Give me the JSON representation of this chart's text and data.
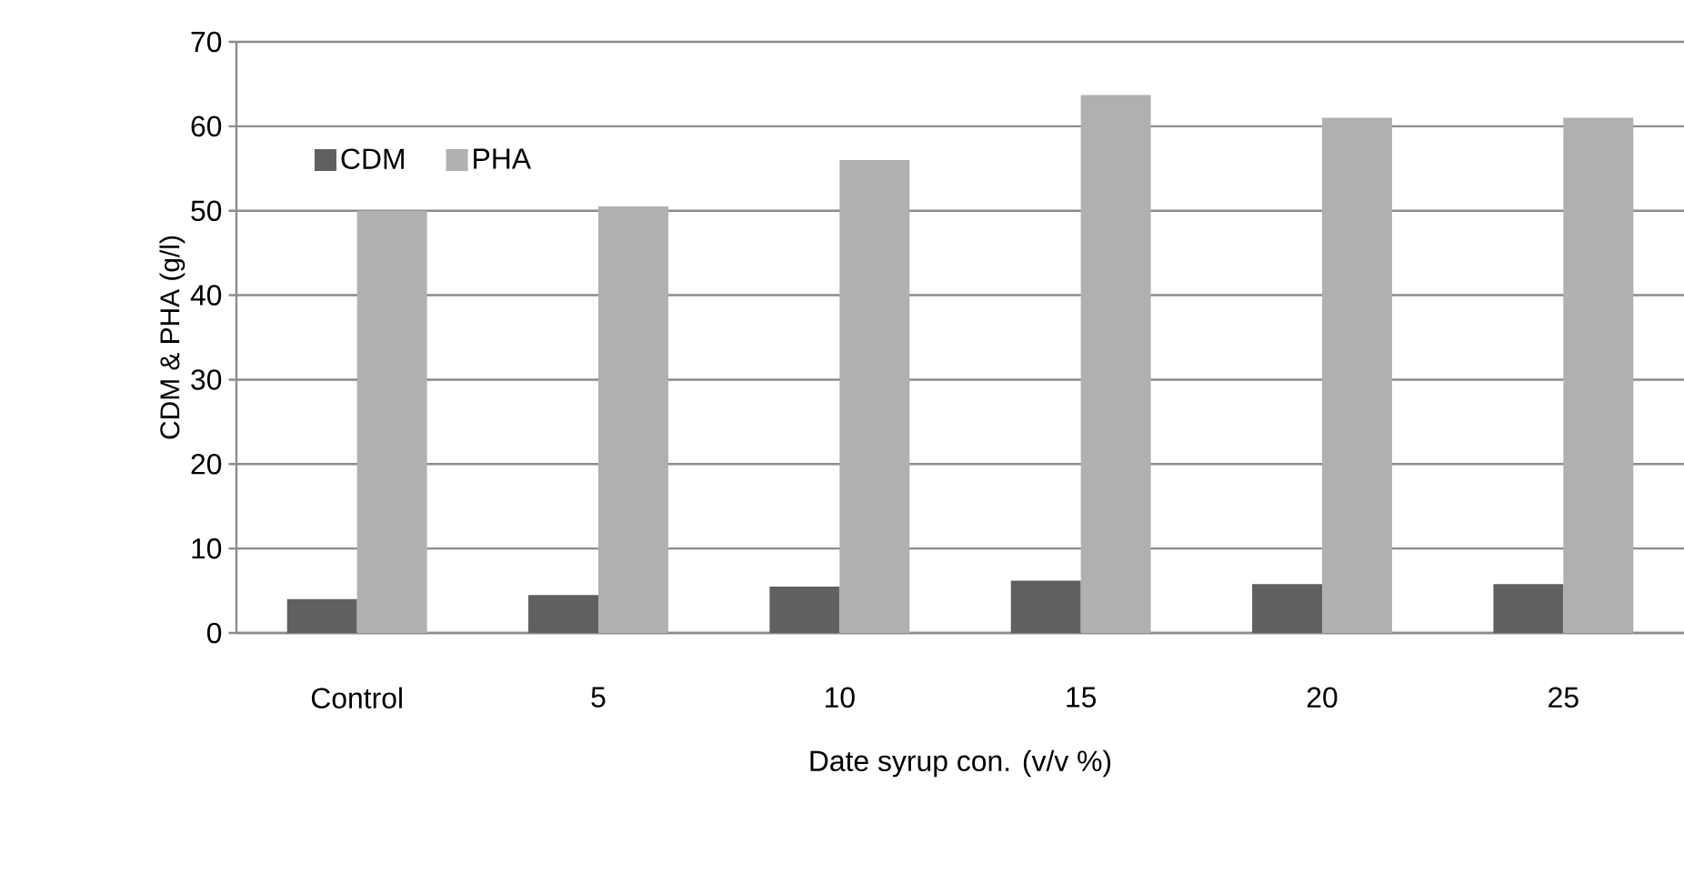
{
  "chart_data": {
    "type": "bar",
    "xlabel": "Date syrup con. (v/v %)",
    "ylabel": "CDM & PHA (g/l)",
    "categories": [
      "Control",
      "5",
      "10",
      "15",
      "20",
      "25"
    ],
    "series": [
      {
        "name": "CDM",
        "color": "#606060",
        "values": [
          4,
          4.5,
          5.5,
          6.2,
          5.8,
          5.8
        ]
      },
      {
        "name": "PHA",
        "color": "#b0b0b0",
        "values": [
          50,
          50.5,
          56,
          63.7,
          61,
          61
        ]
      }
    ],
    "ylim": [
      0,
      70
    ],
    "yticks": [
      0,
      10,
      20,
      30,
      40,
      50,
      60,
      70
    ],
    "grid": "y",
    "legend": "top left"
  }
}
